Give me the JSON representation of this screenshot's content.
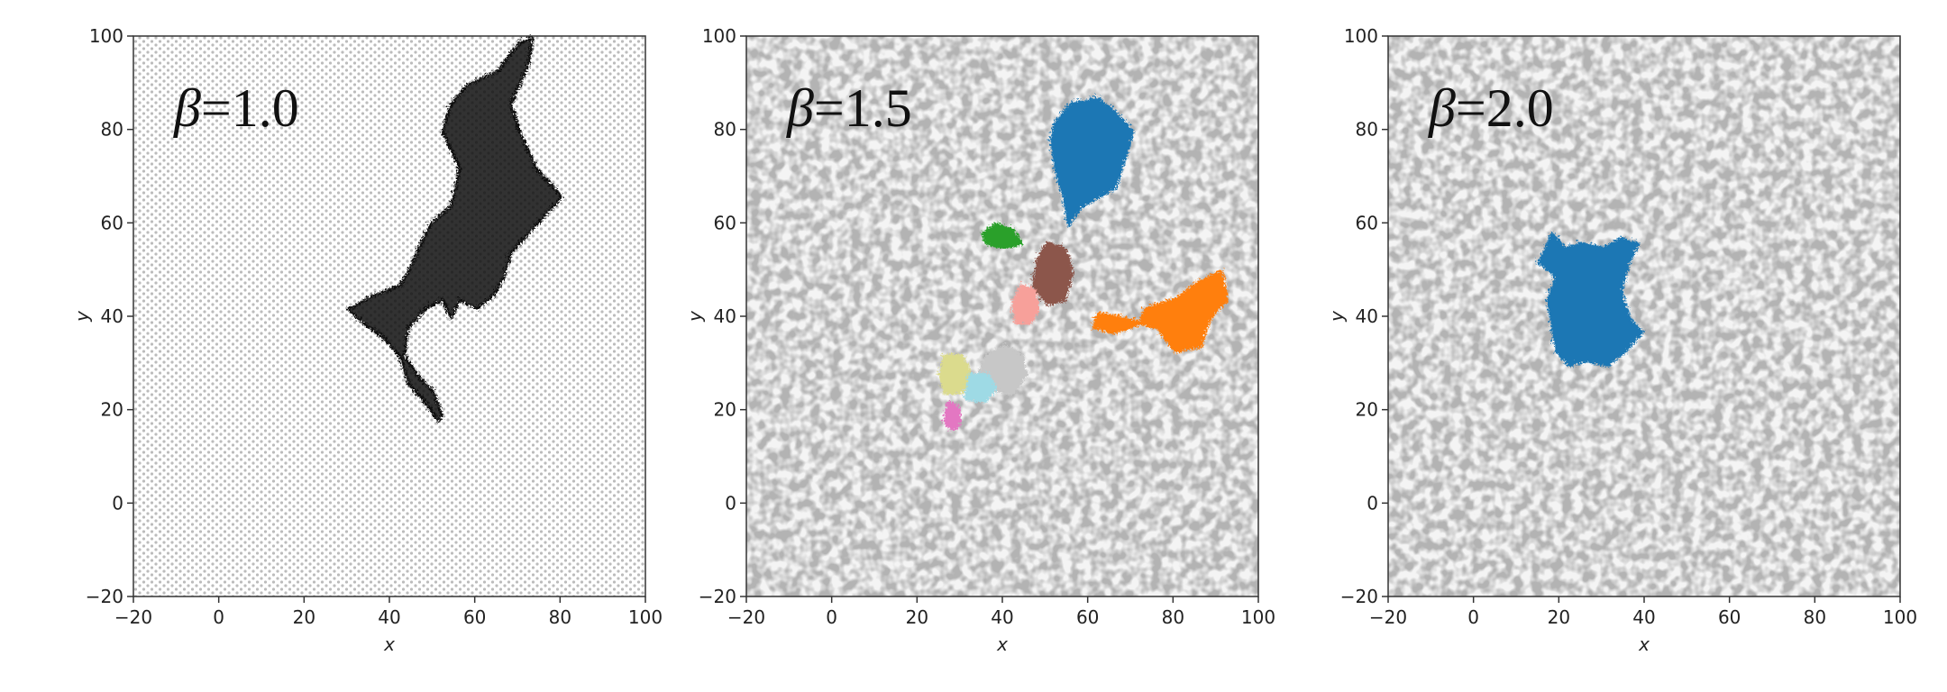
{
  "chart_data": [
    {
      "type": "scatter",
      "title": "",
      "annotation_prefix": "β",
      "annotation_value": "=1.0",
      "xlabel": "x",
      "ylabel": "y",
      "xlim": [
        -20,
        100
      ],
      "ylim": [
        -20,
        100
      ],
      "xticks": [
        -20,
        0,
        20,
        40,
        60,
        80,
        100
      ],
      "yticks": [
        -20,
        0,
        20,
        40,
        60,
        80,
        100
      ],
      "background": "dense hexagonal lattice of light gray points",
      "clusters": [
        {
          "color": "#111111",
          "outline": [
            [
              51,
              18
            ],
            [
              48,
              22
            ],
            [
              44,
              26
            ],
            [
              42,
              32
            ],
            [
              38,
              36
            ],
            [
              32,
              40
            ],
            [
              30,
              42
            ],
            [
              36,
              45
            ],
            [
              42,
              47
            ],
            [
              44,
              50
            ],
            [
              46,
              54
            ],
            [
              49,
              60
            ],
            [
              54,
              64
            ],
            [
              56,
              72
            ],
            [
              52,
              80
            ],
            [
              54,
              86
            ],
            [
              58,
              90
            ],
            [
              65,
              93
            ],
            [
              70,
              99
            ],
            [
              73,
              100
            ],
            [
              72,
              94
            ],
            [
              68,
              86
            ],
            [
              70,
              80
            ],
            [
              74,
              72
            ],
            [
              80,
              66
            ],
            [
              76,
              62
            ],
            [
              72,
              58
            ],
            [
              68,
              54
            ],
            [
              66,
              48
            ],
            [
              64,
              45
            ],
            [
              60,
              42
            ],
            [
              56,
              44
            ],
            [
              54,
              40
            ],
            [
              52,
              44
            ],
            [
              48,
              42
            ],
            [
              44,
              38
            ],
            [
              43,
              32
            ],
            [
              46,
              28
            ],
            [
              50,
              24
            ],
            [
              52,
              19
            ]
          ]
        }
      ]
    },
    {
      "type": "scatter",
      "title": "",
      "annotation_prefix": "β",
      "annotation_value": "=1.5",
      "xlabel": "x",
      "ylabel": "y",
      "xlim": [
        -20,
        100
      ],
      "ylim": [
        -20,
        100
      ],
      "xticks": [
        -20,
        0,
        20,
        40,
        60,
        80,
        100
      ],
      "yticks": [
        -20,
        0,
        20,
        40,
        60,
        80,
        100
      ],
      "background": "speckled light gray points",
      "clusters": [
        {
          "color": "#1f77b4",
          "outline": [
            [
              52,
              82
            ],
            [
              56,
              86
            ],
            [
              62,
              87
            ],
            [
              66,
              84
            ],
            [
              70,
              80
            ],
            [
              68,
              74
            ],
            [
              66,
              68
            ],
            [
              62,
              66
            ],
            [
              58,
              64
            ],
            [
              55,
              60
            ],
            [
              54,
              66
            ],
            [
              52,
              72
            ],
            [
              51,
              78
            ]
          ]
        },
        {
          "color": "#2ca02c",
          "outline": [
            [
              38,
              60
            ],
            [
              42,
              59
            ],
            [
              44,
              56
            ],
            [
              40,
              55
            ],
            [
              36,
              56
            ],
            [
              35,
              58
            ]
          ]
        },
        {
          "color": "#8c564b",
          "outline": [
            [
              50,
              56
            ],
            [
              54,
              55
            ],
            [
              56,
              50
            ],
            [
              54,
              44
            ],
            [
              50,
              43
            ],
            [
              47,
              47
            ],
            [
              48,
              53
            ]
          ]
        },
        {
          "color": "#ff7f0e",
          "outline": [
            [
              73,
              42
            ],
            [
              80,
              44
            ],
            [
              86,
              48
            ],
            [
              91,
              50
            ],
            [
              92,
              44
            ],
            [
              88,
              40
            ],
            [
              86,
              34
            ],
            [
              80,
              33
            ],
            [
              76,
              38
            ],
            [
              68,
              40
            ],
            [
              62,
              41
            ],
            [
              61,
              38
            ],
            [
              66,
              37
            ],
            [
              72,
              39
            ]
          ]
        },
        {
          "color": "#f7a09a",
          "outline": [
            [
              44,
              47
            ],
            [
              47,
              46
            ],
            [
              48,
              42
            ],
            [
              46,
              39
            ],
            [
              43,
              39
            ],
            [
              42,
              43
            ]
          ]
        },
        {
          "color": "#c7c7c7",
          "outline": [
            [
              36,
              32
            ],
            [
              40,
              34
            ],
            [
              44,
              32
            ],
            [
              45,
              28
            ],
            [
              42,
              24
            ],
            [
              37,
              25
            ],
            [
              34,
              28
            ]
          ]
        },
        {
          "color": "#dbdb8d",
          "outline": [
            [
              26,
              32
            ],
            [
              30,
              32
            ],
            [
              32,
              28
            ],
            [
              30,
              24
            ],
            [
              26,
              24
            ],
            [
              25,
              28
            ]
          ]
        },
        {
          "color": "#9edae5",
          "outline": [
            [
              32,
              28
            ],
            [
              36,
              28
            ],
            [
              38,
              25
            ],
            [
              35,
              22
            ],
            [
              31,
              23
            ]
          ]
        },
        {
          "color": "#e377c2",
          "outline": [
            [
              27,
              22
            ],
            [
              29,
              21
            ],
            [
              30,
              18
            ],
            [
              28,
              16
            ],
            [
              26,
              18
            ]
          ]
        }
      ]
    },
    {
      "type": "scatter",
      "title": "",
      "annotation_prefix": "β",
      "annotation_value": "=2.0",
      "xlabel": "x",
      "ylabel": "y",
      "xlim": [
        -20,
        100
      ],
      "ylim": [
        -20,
        100
      ],
      "xticks": [
        -20,
        0,
        20,
        40,
        60,
        80,
        100
      ],
      "yticks": [
        -20,
        0,
        20,
        40,
        60,
        80,
        100
      ],
      "background": "speckled light gray points",
      "clusters": [
        {
          "color": "#1f77b4",
          "outline": [
            [
              15,
              52
            ],
            [
              18,
              58
            ],
            [
              21,
              55
            ],
            [
              25,
              56
            ],
            [
              30,
              55
            ],
            [
              34,
              57
            ],
            [
              38,
              56
            ],
            [
              36,
              52
            ],
            [
              34,
              46
            ],
            [
              36,
              40
            ],
            [
              39,
              37
            ],
            [
              35,
              33
            ],
            [
              31,
              30
            ],
            [
              26,
              31
            ],
            [
              22,
              30
            ],
            [
              19,
              33
            ],
            [
              18,
              38
            ],
            [
              17,
              44
            ],
            [
              19,
              49
            ]
          ]
        }
      ]
    }
  ],
  "colors": {
    "axes": "#333333",
    "background_points": "#bdbdbd"
  }
}
